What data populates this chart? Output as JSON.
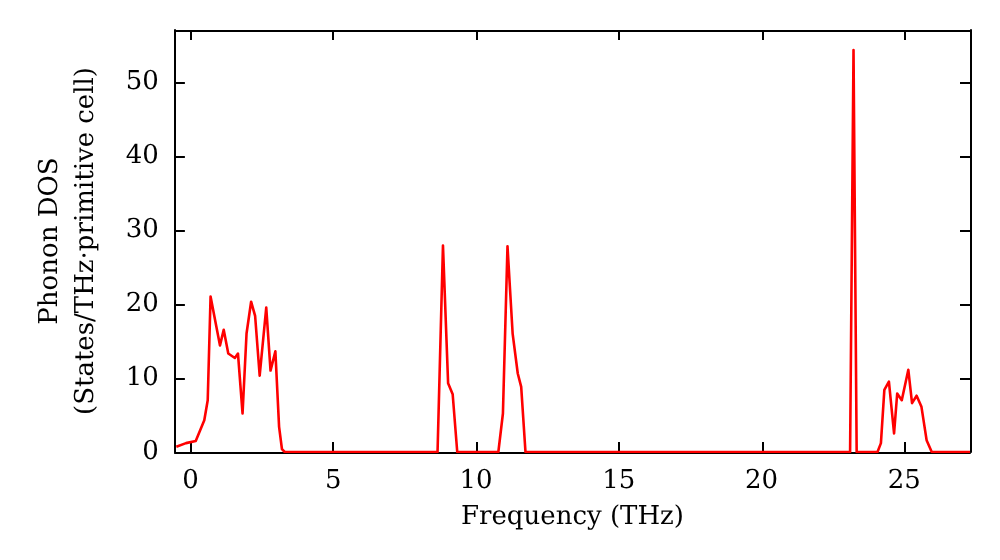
{
  "chart_data": {
    "type": "line",
    "xlabel": "Frequency (THz)",
    "ylabel": "Phonon DOS\n(States/THz·primitive cell)",
    "xlim": [
      -0.55,
      27.3
    ],
    "ylim": [
      0,
      57
    ],
    "xticks": [
      0,
      5,
      10,
      15,
      20,
      25
    ],
    "yticks": [
      0,
      10,
      20,
      30,
      40,
      50
    ],
    "grid": false,
    "marker": "none",
    "line_style": "solid",
    "x": [
      -0.5,
      -0.16,
      0.18,
      0.48,
      0.6,
      0.7,
      0.9,
      1.03,
      1.16,
      1.32,
      1.55,
      1.66,
      1.82,
      1.96,
      2.12,
      2.26,
      2.42,
      2.65,
      2.8,
      2.97,
      3.1,
      3.2,
      3.3,
      8.65,
      8.84,
      9.02,
      9.18,
      9.34,
      10.78,
      10.94,
      11.1,
      11.28,
      11.46,
      11.58,
      11.73,
      23.1,
      23.22,
      23.33,
      24.06,
      24.18,
      24.3,
      24.46,
      24.64,
      24.75,
      24.91,
      25.14,
      25.27,
      25.43,
      25.6,
      25.78,
      25.96,
      27.3
    ],
    "series": [
      {
        "color": "#ff0000",
        "values": [
          0.7,
          1.2,
          1.5,
          4.3,
          7,
          21,
          17,
          14.4,
          16.5,
          13.3,
          12.7,
          13.3,
          5.2,
          16,
          20.3,
          18.4,
          10.3,
          19.5,
          11,
          13.6,
          3.4,
          0.4,
          0,
          0,
          27.9,
          9.3,
          7.8,
          0,
          0,
          5.2,
          27.8,
          16,
          10.6,
          8.8,
          0,
          0,
          54.3,
          0,
          0,
          1.2,
          8.4,
          9.5,
          2.5,
          7.9,
          7,
          11.1,
          6.6,
          7.6,
          6.1,
          1.6,
          0,
          0
        ]
      }
    ]
  }
}
